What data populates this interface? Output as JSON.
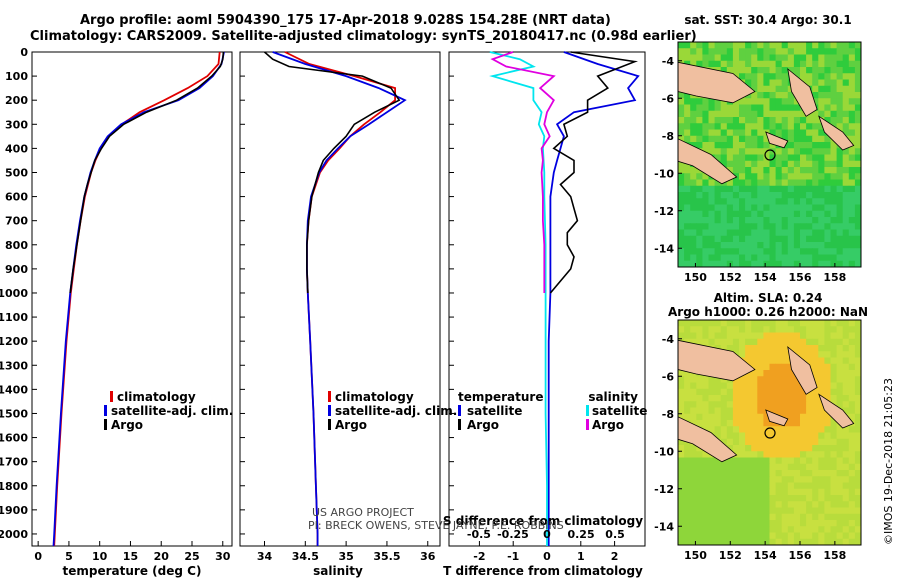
{
  "header": {
    "title_line1": "Argo profile: aoml 5904390_175 17-Apr-2018 9.028S 154.28E (NRT data)",
    "title_line2": "Climatology: CARS2009. Satellite-adjusted climatology: synTS_20180417.nc (0.98d earlier)"
  },
  "colors": {
    "climatology": "#e00000",
    "satellite": "#0000e0",
    "argo": "#000000",
    "satellite_salinity": "#00e5ee",
    "argo_salinity": "#e000e0"
  },
  "depth_axis": {
    "range": [
      0,
      2050
    ],
    "ticks": [
      0,
      100,
      200,
      300,
      400,
      500,
      600,
      700,
      800,
      900,
      1000,
      1100,
      1200,
      1300,
      1400,
      1500,
      1600,
      1700,
      1800,
      1900,
      2000
    ],
    "tick_labels": [
      "0",
      "100",
      "200",
      "300",
      "400",
      "500",
      "600",
      "700",
      "800",
      "900",
      "1000",
      "1100",
      "1200",
      "1300",
      "1400",
      "1500",
      "1600",
      "1700",
      "1800",
      "1900",
      "2000"
    ]
  },
  "chart_data": [
    {
      "id": "temperature",
      "type": "line",
      "xlabel": "temperature (deg C)",
      "xlim": [
        -1,
        31.5
      ],
      "xticks": [
        0,
        5,
        10,
        15,
        20,
        25,
        30
      ],
      "xtick_labels": [
        "0",
        "5",
        "10",
        "15",
        "20",
        "25",
        "30"
      ],
      "legend": [
        "climatology",
        "satellite-adj. clim.",
        "Argo"
      ],
      "series": [
        {
          "name": "climatology",
          "color": "#e00000",
          "depth": [
            0,
            50,
            100,
            150,
            200,
            250,
            300,
            350,
            400,
            450,
            500,
            600,
            700,
            800,
            900,
            1000,
            1200,
            1500,
            1800,
            2000,
            2050
          ],
          "values": [
            29.5,
            29.3,
            27.5,
            24.3,
            20.5,
            16.5,
            13.6,
            11.5,
            10.2,
            9.3,
            8.6,
            7.6,
            6.9,
            6.3,
            5.8,
            5.3,
            4.6,
            3.8,
            3.1,
            2.7,
            2.6
          ]
        },
        {
          "name": "satellite-adj. clim.",
          "color": "#0000e0",
          "depth": [
            0,
            50,
            100,
            150,
            200,
            250,
            300,
            350,
            400,
            450,
            500,
            600,
            700,
            800,
            900,
            1000,
            1200,
            1500,
            1800,
            2000,
            2050
          ],
          "values": [
            30.2,
            29.8,
            28.4,
            26.2,
            22.8,
            17.2,
            13.5,
            11.3,
            10.0,
            9.2,
            8.5,
            7.5,
            6.8,
            6.2,
            5.7,
            5.2,
            4.5,
            3.7,
            3.0,
            2.6,
            2.5
          ]
        },
        {
          "name": "Argo",
          "color": "#000000",
          "depth": [
            0,
            30,
            60,
            100,
            150,
            200,
            250,
            300,
            350,
            400,
            450,
            500,
            550,
            600,
            700,
            800,
            850,
            900,
            1000
          ],
          "values": [
            30.1,
            30.0,
            29.6,
            28.2,
            25.9,
            22.5,
            17.6,
            13.9,
            11.6,
            10.3,
            9.2,
            8.6,
            8.0,
            7.5,
            6.9,
            6.3,
            6.0,
            5.7,
            5.2
          ]
        }
      ]
    },
    {
      "id": "salinity",
      "type": "line",
      "xlabel": "salinity",
      "xlim": [
        33.7,
        36.15
      ],
      "xticks": [
        34,
        34.5,
        35,
        35.5,
        36
      ],
      "xtick_labels": [
        "34",
        "34.5",
        "35",
        "35.5",
        "36"
      ],
      "legend": [
        "climatology",
        "satellite-adj. clim.",
        "Argo"
      ],
      "series": [
        {
          "name": "climatology",
          "color": "#e00000",
          "depth": [
            0,
            50,
            100,
            150,
            200,
            250,
            300,
            350,
            400,
            450,
            500,
            600,
            700,
            800,
            900,
            1000,
            1200,
            1500,
            1800,
            2000,
            2050
          ],
          "values": [
            34.25,
            34.55,
            35.1,
            35.6,
            35.6,
            35.42,
            35.22,
            35.05,
            34.92,
            34.78,
            34.68,
            34.58,
            34.54,
            34.52,
            34.52,
            34.53,
            34.56,
            34.6,
            34.63,
            34.65,
            34.65
          ]
        },
        {
          "name": "satellite-adj. clim.",
          "color": "#0000e0",
          "depth": [
            0,
            50,
            100,
            150,
            200,
            250,
            300,
            350,
            400,
            450,
            500,
            600,
            700,
            800,
            900,
            1000,
            1200,
            1500,
            1800,
            2000,
            2050
          ],
          "values": [
            34.1,
            34.5,
            35.0,
            35.4,
            35.72,
            35.5,
            35.28,
            35.05,
            34.9,
            34.76,
            34.67,
            34.57,
            34.53,
            34.52,
            34.52,
            34.53,
            34.56,
            34.6,
            34.63,
            34.65,
            34.65
          ]
        },
        {
          "name": "Argo",
          "color": "#000000",
          "depth": [
            0,
            30,
            60,
            100,
            150,
            200,
            250,
            300,
            350,
            400,
            450,
            500,
            550,
            600,
            700,
            800,
            850,
            900,
            1000
          ],
          "values": [
            34.0,
            34.1,
            34.3,
            35.2,
            35.55,
            35.65,
            35.35,
            35.1,
            35.0,
            34.85,
            34.72,
            34.66,
            34.62,
            34.58,
            34.54,
            34.52,
            34.52,
            34.52,
            34.53
          ]
        }
      ]
    },
    {
      "id": "difference",
      "type": "line",
      "xlabel": "T difference from climatology",
      "xlabel_top": "S difference from climatology",
      "xlim": [
        -2.9,
        2.9
      ],
      "xticks": [
        -2,
        -1,
        0,
        1,
        2
      ],
      "xtick_labels": [
        "-2",
        "-1",
        "0",
        "1",
        "2"
      ],
      "sticks_top": [
        -0.5,
        -0.25,
        0,
        0.25,
        0.5
      ],
      "sticks_top_labels": [
        "-0.5",
        "-0.25",
        "0",
        "0.25",
        "0.5"
      ],
      "legend_temperature_title": "temperature",
      "legend_salinity_title": "salinity",
      "legend_temperature": [
        "satellite",
        "Argo"
      ],
      "legend_salinity": [
        "satellite",
        "Argo"
      ],
      "series": [
        {
          "name": "T satellite",
          "color": "#0000e0",
          "depth": [
            0,
            50,
            100,
            150,
            200,
            250,
            300,
            350,
            400,
            450,
            500,
            600,
            700,
            800,
            900,
            1000,
            1200,
            1500,
            1800,
            2000,
            2050
          ],
          "values": [
            0.5,
            1.5,
            2.7,
            2.4,
            2.6,
            0.8,
            0.3,
            0.5,
            0.4,
            0.3,
            0.2,
            0.1,
            0.1,
            0.1,
            0.1,
            0.1,
            0.05,
            0.05,
            0.05,
            0.05,
            0.05
          ]
        },
        {
          "name": "T Argo",
          "color": "#000000",
          "depth": [
            0,
            40,
            100,
            150,
            200,
            250,
            300,
            350,
            400,
            450,
            500,
            550,
            600,
            650,
            700,
            750,
            800,
            850,
            900,
            1000
          ],
          "values": [
            0.7,
            2.6,
            1.5,
            1.8,
            1.2,
            1.2,
            0.5,
            0.6,
            0.2,
            0.8,
            0.8,
            0.4,
            0.7,
            0.8,
            0.9,
            0.6,
            0.6,
            0.8,
            0.7,
            0.1
          ]
        },
        {
          "name": "S satellite",
          "color": "#00e5ee",
          "depth": [
            0,
            30,
            60,
            100,
            150,
            200,
            250,
            300,
            350,
            400,
            500,
            600,
            800,
            1000,
            1200,
            1500,
            1800,
            2000,
            2050
          ],
          "values": [
            -0.42,
            -0.2,
            -0.1,
            -0.4,
            -0.1,
            -0.1,
            -0.04,
            -0.06,
            -0.02,
            -0.03,
            -0.02,
            -0.02,
            -0.01,
            -0.01,
            -0.01,
            -0.01,
            0,
            0,
            0
          ]
        },
        {
          "name": "S Argo",
          "color": "#e000e0",
          "depth": [
            0,
            30,
            60,
            100,
            150,
            200,
            250,
            300,
            350,
            400,
            450,
            500,
            600,
            700,
            800,
            900,
            1000
          ],
          "values": [
            -0.25,
            -0.4,
            -0.3,
            0.05,
            -0.05,
            0.05,
            0.0,
            -0.02,
            0.02,
            -0.04,
            -0.03,
            -0.04,
            -0.03,
            -0.03,
            -0.02,
            -0.02,
            -0.02
          ]
        }
      ]
    },
    {
      "id": "sst_map",
      "type": "heatmap",
      "title": "sat. SST: 30.4 Argo: 30.1",
      "xticks": [
        150,
        152,
        154,
        156,
        158
      ],
      "xtick_labels": [
        "150",
        "152",
        "154",
        "156",
        "158"
      ],
      "yticks": [
        -4,
        -6,
        -8,
        -10,
        -12,
        -14
      ],
      "ytick_labels": [
        "-4",
        "-6",
        "-8",
        "-10",
        "-12",
        "-14"
      ],
      "float_position": {
        "lon": 154.28,
        "lat": -9.028
      }
    },
    {
      "id": "sla_map",
      "type": "heatmap",
      "title_line1": "Altim. SLA: 0.24",
      "title_line2": "Argo h1000: 0.26 h2000: NaN",
      "xticks": [
        150,
        152,
        154,
        156,
        158
      ],
      "xtick_labels": [
        "150",
        "152",
        "154",
        "156",
        "158"
      ],
      "yticks": [
        -4,
        -6,
        -8,
        -10,
        -12,
        -14
      ],
      "ytick_labels": [
        "-4",
        "-6",
        "-8",
        "-10",
        "-12",
        "-14"
      ],
      "float_position": {
        "lon": 154.28,
        "lat": -9.028
      }
    }
  ],
  "credit_project": "US ARGO PROJECT",
  "credit_pi": "PI: BRECK OWENS, STEVE JAYNE, P.E. ROBBINS",
  "watermark": "©IMOS 19-Dec-2018 21:05:23"
}
